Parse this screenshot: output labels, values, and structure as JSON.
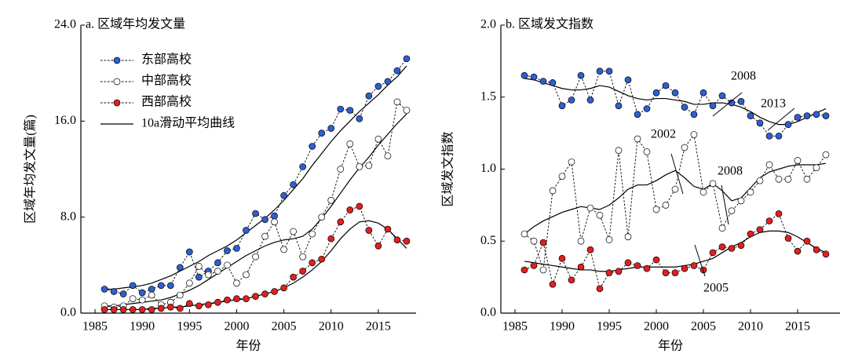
{
  "chart_data": [
    {
      "type": "line",
      "title": "a. 区域年均发文量",
      "xlabel": "年份",
      "ylabel": "区域年均发文量(篇)",
      "x": [
        1986,
        1987,
        1988,
        1989,
        1990,
        1991,
        1992,
        1993,
        1994,
        1995,
        1996,
        1997,
        1998,
        1999,
        2000,
        2001,
        2002,
        2003,
        2004,
        2005,
        2006,
        2007,
        2008,
        2009,
        2010,
        2011,
        2012,
        2013,
        2014,
        2015,
        2016,
        2017,
        2018
      ],
      "xlim": [
        1983.5,
        2019
      ],
      "xticks": [
        1985,
        1990,
        1995,
        2000,
        2005,
        2010,
        2015
      ],
      "ylim": [
        0,
        24
      ],
      "yticks": [
        {
          "value": 0,
          "label": "0.0"
        },
        {
          "value": 8,
          "label": "8.0"
        },
        {
          "value": 16,
          "label": "16.0"
        },
        {
          "value": 24,
          "label": "24.0"
        }
      ],
      "legend": "upper left",
      "trend_name": "10a滑动平均曲线",
      "trend_color": "#000000",
      "series": [
        {
          "name": "东部高校",
          "color": "#2f5fd0",
          "values": [
            2.0,
            1.8,
            1.6,
            2.3,
            1.7,
            2.0,
            2.3,
            2.3,
            3.8,
            5.1,
            3.0,
            3.5,
            4.2,
            5.2,
            5.4,
            6.9,
            8.3,
            7.8,
            8.1,
            9.8,
            10.7,
            12.2,
            13.9,
            15.0,
            15.4,
            17.0,
            16.9,
            16.2,
            18.1,
            18.9,
            19.3,
            20.2,
            21.2
          ],
          "trend": [
            2.0,
            2.0,
            2.1,
            2.2,
            2.3,
            2.5,
            2.8,
            3.1,
            3.5,
            3.9,
            4.3,
            4.8,
            5.2,
            5.6,
            6.1,
            6.7,
            7.3,
            7.9,
            8.6,
            9.4,
            10.3,
            11.2,
            12.3,
            13.3,
            14.3,
            15.2,
            16.0,
            16.8,
            17.5,
            18.2,
            19.0,
            19.7,
            20.6
          ]
        },
        {
          "name": "中部高校",
          "color": "#ffffff",
          "values": [
            0.6,
            0.5,
            0.6,
            1.2,
            1.1,
            1.5,
            0.7,
            0.9,
            1.5,
            2.5,
            3.9,
            3.2,
            3.5,
            4.0,
            2.5,
            3.2,
            4.7,
            6.4,
            7.6,
            5.3,
            6.8,
            4.7,
            6.6,
            8.0,
            9.4,
            12.0,
            14.1,
            12.2,
            12.3,
            14.5,
            13.1,
            17.6,
            16.9
          ],
          "trend": [
            0.6,
            0.6,
            0.7,
            0.8,
            0.9,
            1.0,
            1.1,
            1.3,
            1.6,
            1.9,
            2.3,
            2.8,
            3.3,
            3.8,
            4.3,
            4.8,
            5.2,
            5.6,
            5.9,
            6.1,
            6.2,
            6.4,
            7.0,
            7.9,
            8.9,
            10.0,
            11.1,
            12.1,
            13.0,
            14.0,
            14.9,
            15.8,
            16.6
          ]
        },
        {
          "name": "西部高校",
          "color": "#e02020",
          "values": [
            0.3,
            0.3,
            0.3,
            0.3,
            0.3,
            0.3,
            0.4,
            0.5,
            0.4,
            0.8,
            0.6,
            0.7,
            0.9,
            1.1,
            1.2,
            1.2,
            1.4,
            1.6,
            1.8,
            2.1,
            3.0,
            3.5,
            4.2,
            4.5,
            6.2,
            7.6,
            8.6,
            8.9,
            6.9,
            5.6,
            7.0,
            6.1,
            6.0
          ],
          "trend": [
            0.3,
            0.3,
            0.3,
            0.3,
            0.3,
            0.4,
            0.4,
            0.5,
            0.5,
            0.6,
            0.7,
            0.8,
            0.9,
            1.0,
            1.1,
            1.2,
            1.4,
            1.6,
            1.8,
            2.1,
            2.5,
            3.0,
            3.6,
            4.3,
            5.2,
            6.2,
            7.0,
            7.6,
            7.7,
            7.5,
            7.0,
            6.2,
            5.4
          ]
        }
      ]
    },
    {
      "type": "line",
      "title": "b. 区域发文指数",
      "xlabel": "年份",
      "ylabel": "区域发文指数",
      "x": [
        1986,
        1987,
        1988,
        1989,
        1990,
        1991,
        1992,
        1993,
        1994,
        1995,
        1996,
        1997,
        1998,
        1999,
        2000,
        2001,
        2002,
        2003,
        2004,
        2005,
        2006,
        2007,
        2008,
        2009,
        2010,
        2011,
        2012,
        2013,
        2014,
        2015,
        2016,
        2017,
        2018
      ],
      "xlim": [
        1983.5,
        2019.5
      ],
      "xticks": [
        1985,
        1990,
        1995,
        2000,
        2005,
        2010,
        2015
      ],
      "ylim": [
        0,
        2
      ],
      "yticks": [
        {
          "value": 0,
          "label": "0.0"
        },
        0.5,
        {
          "value": 1,
          "label": "1.0"
        },
        1.5,
        {
          "value": 2,
          "label": "2.0"
        }
      ],
      "trend_color": "#000000",
      "annotations": [
        "2008",
        "2013",
        "2002",
        "2008",
        "2005"
      ],
      "series": [
        {
          "name": "东部高校",
          "color": "#2f5fd0",
          "values": [
            1.65,
            1.64,
            1.61,
            1.6,
            1.44,
            1.48,
            1.65,
            1.48,
            1.68,
            1.68,
            1.44,
            1.62,
            1.38,
            1.42,
            1.53,
            1.58,
            1.53,
            1.43,
            1.38,
            1.53,
            1.44,
            1.51,
            1.46,
            1.47,
            1.37,
            1.32,
            1.23,
            1.23,
            1.31,
            1.36,
            1.37,
            1.38,
            1.37
          ],
          "trend": [
            1.63,
            1.62,
            1.6,
            1.58,
            1.56,
            1.55,
            1.55,
            1.56,
            1.58,
            1.57,
            1.54,
            1.51,
            1.49,
            1.48,
            1.49,
            1.49,
            1.48,
            1.47,
            1.45,
            1.45,
            1.46,
            1.46,
            1.45,
            1.43,
            1.4,
            1.36,
            1.33,
            1.31,
            1.31,
            1.33,
            1.36,
            1.39,
            1.42
          ]
        },
        {
          "name": "中部高校",
          "color": "#ffffff",
          "values": [
            0.55,
            0.5,
            0.3,
            0.85,
            0.95,
            1.05,
            0.5,
            0.73,
            0.68,
            0.51,
            1.13,
            0.53,
            1.21,
            1.12,
            0.72,
            0.75,
            0.86,
            1.15,
            1.24,
            0.84,
            0.9,
            0.59,
            0.71,
            0.78,
            0.84,
            0.92,
            1.03,
            0.93,
            0.93,
            1.06,
            0.93,
            1.01,
            1.1
          ],
          "trend": [
            0.55,
            0.6,
            0.64,
            0.67,
            0.7,
            0.72,
            0.74,
            0.73,
            0.72,
            0.75,
            0.8,
            0.86,
            0.89,
            0.89,
            0.92,
            0.96,
            0.99,
            0.94,
            0.88,
            0.86,
            0.9,
            0.85,
            0.78,
            0.8,
            0.87,
            0.94,
            0.98,
            1.0,
            1.02,
            1.03,
            1.03,
            1.03,
            1.04
          ]
        },
        {
          "name": "西部高校",
          "color": "#e02020",
          "values": [
            0.3,
            0.33,
            0.49,
            0.2,
            0.38,
            0.23,
            0.32,
            0.44,
            0.17,
            0.28,
            0.29,
            0.35,
            0.33,
            0.31,
            0.37,
            0.28,
            0.28,
            0.31,
            0.33,
            0.3,
            0.42,
            0.46,
            0.45,
            0.47,
            0.55,
            0.58,
            0.64,
            0.69,
            0.52,
            0.43,
            0.5,
            0.44,
            0.41
          ],
          "trend": [
            0.36,
            0.35,
            0.34,
            0.33,
            0.32,
            0.31,
            0.3,
            0.3,
            0.29,
            0.29,
            0.3,
            0.31,
            0.32,
            0.32,
            0.32,
            0.32,
            0.32,
            0.33,
            0.34,
            0.36,
            0.38,
            0.42,
            0.46,
            0.49,
            0.53,
            0.56,
            0.57,
            0.57,
            0.56,
            0.53,
            0.49,
            0.45,
            0.42
          ]
        }
      ]
    }
  ]
}
